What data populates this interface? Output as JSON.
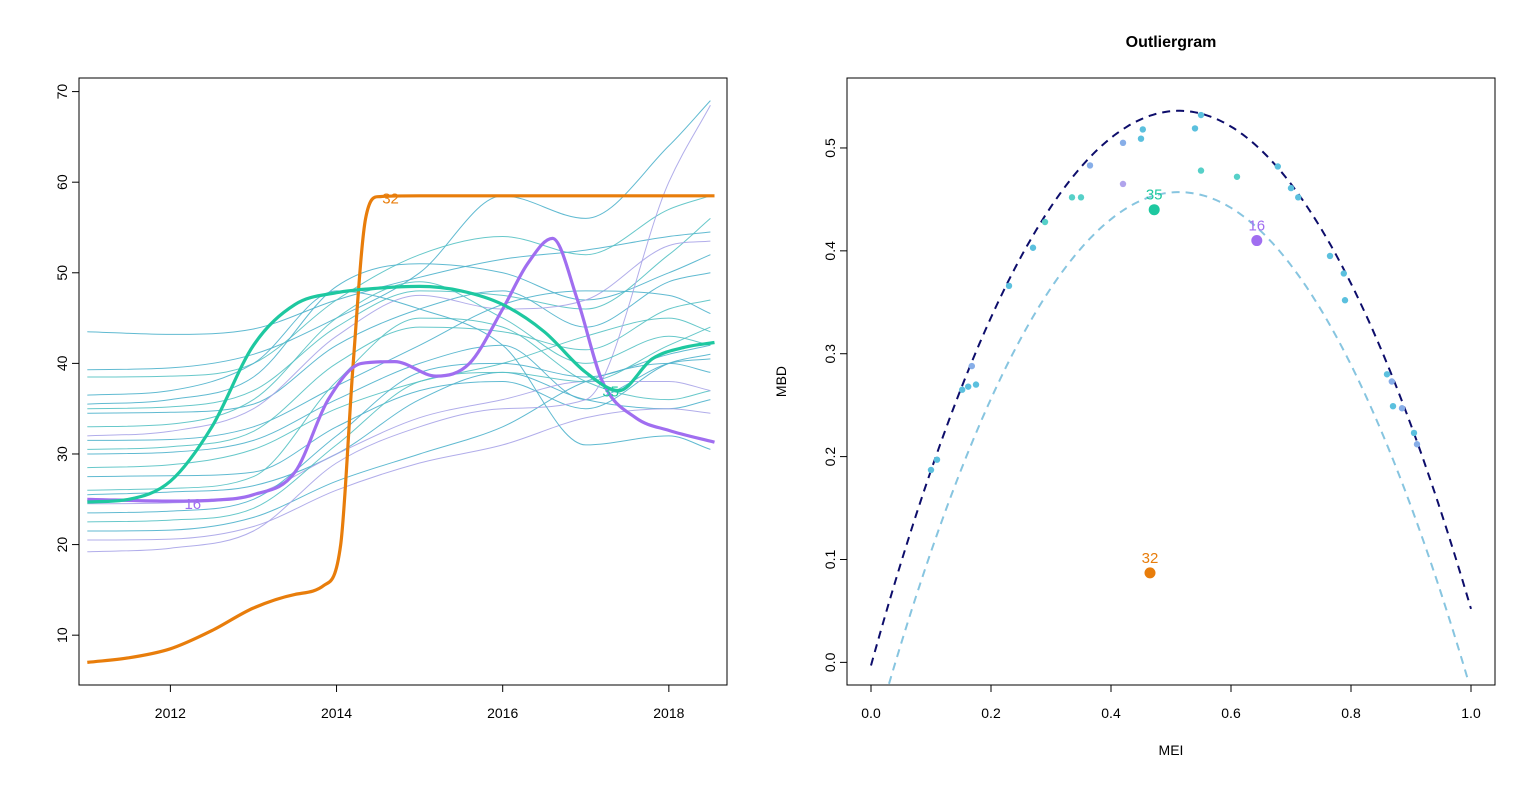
{
  "chart_data": [
    {
      "type": "line",
      "title": "",
      "xlabel": "",
      "ylabel": "",
      "xlim": [
        2010.9,
        2018.7
      ],
      "ylim": [
        4.5,
        71.5
      ],
      "x_ticks": [
        "2012",
        "2014",
        "2016",
        "2018"
      ],
      "y_ticks": [
        "10",
        "20",
        "30",
        "40",
        "50",
        "60",
        "70"
      ],
      "x_tick_values": [
        2012,
        2014,
        2016,
        2018
      ],
      "y_tick_values": [
        10,
        20,
        30,
        40,
        50,
        60,
        70
      ],
      "grid": false,
      "background_series": [
        {
          "x": [
            2011,
            2012,
            2013,
            2014,
            2015,
            2016,
            2017,
            2018,
            2018.5
          ],
          "values": [
            43.5,
            43.2,
            43.8,
            47.0,
            49.5,
            51.5,
            52.5,
            54.0,
            54.5
          ],
          "color": "#4fb3cc"
        },
        {
          "x": [
            2011,
            2012,
            2013,
            2014,
            2015,
            2016,
            2017,
            2018,
            2018.5
          ],
          "values": [
            39.3,
            39.5,
            41.0,
            45.0,
            50.0,
            58.5,
            56.0,
            64.0,
            69.0
          ],
          "color": "#4fb3cc"
        },
        {
          "x": [
            2011,
            2012,
            2013,
            2014,
            2015,
            2016,
            2017,
            2018,
            2018.5
          ],
          "values": [
            38.5,
            38.6,
            40.0,
            47.0,
            52.0,
            54.0,
            52.0,
            57.0,
            58.5
          ],
          "color": "#56c2c4"
        },
        {
          "x": [
            2011,
            2012,
            2013,
            2014,
            2015,
            2016,
            2017,
            2018,
            2018.5
          ],
          "values": [
            35.5,
            36.0,
            38.5,
            48.5,
            51.0,
            50.0,
            47.0,
            50.0,
            52.0
          ],
          "color": "#4fb3cc"
        },
        {
          "x": [
            2011,
            2012,
            2013,
            2014,
            2015,
            2016,
            2017,
            2018,
            2018.5
          ],
          "values": [
            35.0,
            35.2,
            37.0,
            44.0,
            48.0,
            47.5,
            46.0,
            52.0,
            56.0
          ],
          "color": "#56c2c4"
        },
        {
          "x": [
            2011,
            2012,
            2013,
            2014,
            2015,
            2016,
            2017,
            2018,
            2018.5
          ],
          "values": [
            34.5,
            34.6,
            35.5,
            42.0,
            46.0,
            48.0,
            44.0,
            49.0,
            50.0
          ],
          "color": "#4fb3cc"
        },
        {
          "x": [
            2011,
            2012,
            2013,
            2014,
            2015,
            2016,
            2017,
            2018,
            2018.5
          ],
          "values": [
            32.0,
            32.5,
            35.0,
            43.0,
            47.5,
            46.0,
            47.0,
            53.0,
            53.5
          ],
          "color": "#a9a4e8"
        },
        {
          "x": [
            2011,
            2012,
            2013,
            2014,
            2015,
            2016,
            2017,
            2018,
            2018.5
          ],
          "values": [
            31.5,
            31.6,
            33.0,
            37.5,
            42.0,
            46.5,
            48.0,
            47.5,
            45.5
          ],
          "color": "#4fb3cc"
        },
        {
          "x": [
            2011,
            2012,
            2013,
            2014,
            2015,
            2016,
            2017,
            2018,
            2018.5
          ],
          "values": [
            30.5,
            30.8,
            32.5,
            40.0,
            44.0,
            43.5,
            41.5,
            46.0,
            47.0
          ],
          "color": "#56c2c4"
        },
        {
          "x": [
            2011,
            2012,
            2013,
            2014,
            2015,
            2016,
            2017,
            2018,
            2018.5
          ],
          "values": [
            30.0,
            30.2,
            31.5,
            36.0,
            40.0,
            42.0,
            36.0,
            40.0,
            40.5
          ],
          "color": "#4fb3cc"
        },
        {
          "x": [
            2011,
            2012,
            2013,
            2014,
            2015,
            2016,
            2017,
            2018,
            2018.5
          ],
          "values": [
            28.5,
            28.8,
            30.5,
            35.0,
            38.0,
            40.0,
            43.0,
            45.0,
            43.5
          ],
          "color": "#56c2c4"
        },
        {
          "x": [
            2011,
            2012,
            2013,
            2014,
            2015,
            2016,
            2017,
            2018,
            2018.5
          ],
          "values": [
            27.5,
            27.6,
            28.0,
            33.0,
            37.0,
            38.0,
            35.0,
            40.0,
            41.0
          ],
          "color": "#4fb3cc"
        },
        {
          "x": [
            2011,
            2012,
            2013,
            2014,
            2015,
            2016,
            2017,
            2018,
            2018.5
          ],
          "values": [
            26.0,
            26.2,
            27.5,
            38.0,
            45.0,
            44.0,
            38.0,
            36.0,
            37.0
          ],
          "color": "#56c2c4"
        },
        {
          "x": [
            2011,
            2012,
            2013,
            2014,
            2015,
            2016,
            2017,
            2018,
            2018.5
          ],
          "values": [
            25.5,
            25.8,
            26.5,
            30.0,
            36.0,
            39.0,
            36.0,
            35.0,
            36.0
          ],
          "color": "#4fb3cc"
        },
        {
          "x": [
            2011,
            2012,
            2013,
            2014,
            2015,
            2016,
            2017,
            2018,
            2018.5
          ],
          "values": [
            24.5,
            24.6,
            25.5,
            30.0,
            34.0,
            36.0,
            38.0,
            38.0,
            37.0
          ],
          "color": "#a9a4e8"
        },
        {
          "x": [
            2011,
            2012,
            2013,
            2014,
            2015,
            2016,
            2017,
            2018,
            2018.5
          ],
          "values": [
            23.5,
            23.7,
            25.0,
            32.0,
            39.0,
            40.0,
            38.5,
            41.0,
            42.0
          ],
          "color": "#4fb3cc"
        },
        {
          "x": [
            2011,
            2012,
            2013,
            2014,
            2015,
            2016,
            2017,
            2018,
            2018.5
          ],
          "values": [
            22.5,
            22.7,
            24.0,
            31.0,
            38.0,
            39.0,
            38.0,
            42.0,
            44.0
          ],
          "color": "#56c2c4"
        },
        {
          "x": [
            2011,
            2012,
            2013,
            2014,
            2015,
            2016,
            2017,
            2018,
            2018.5
          ],
          "values": [
            21.5,
            21.6,
            23.0,
            27.0,
            30.0,
            33.0,
            38.0,
            40.0,
            39.0
          ],
          "color": "#4fb3cc"
        },
        {
          "x": [
            2011,
            2012,
            2013,
            2014,
            2015,
            2016,
            2017,
            2018,
            2018.5
          ],
          "values": [
            20.5,
            20.6,
            22.0,
            26.0,
            29.0,
            31.0,
            34.0,
            35.0,
            34.5
          ],
          "color": "#a9a4e8"
        },
        {
          "x": [
            2011,
            2012,
            2013,
            2014,
            2015,
            2016,
            2017,
            2018,
            2018.5
          ],
          "values": [
            19.2,
            19.6,
            21.5,
            29.0,
            33.0,
            35.0,
            36.0,
            60.0,
            68.5
          ],
          "color": "#a9a4e8"
        },
        {
          "x": [
            2011,
            2012,
            2013,
            2014,
            2015,
            2016,
            2017,
            2018,
            2018.5
          ],
          "values": [
            36.5,
            37.0,
            40.0,
            48.0,
            46.0,
            42.0,
            31.0,
            32.0,
            30.5
          ],
          "color": "#4fb3cc"
        },
        {
          "x": [
            2011,
            2012,
            2013,
            2014,
            2015,
            2016,
            2017,
            2018,
            2018.5
          ],
          "values": [
            33.0,
            33.3,
            36.0,
            45.0,
            49.0,
            45.0,
            40.0,
            43.0,
            42.0
          ],
          "color": "#56c2c4"
        }
      ],
      "highlighted_series": [
        {
          "name": "32",
          "color": "#e87d0b",
          "x": [
            2011.0,
            2011.5,
            2012.0,
            2012.5,
            2013.0,
            2013.5,
            2013.85,
            2014.05,
            2014.2,
            2014.35,
            2014.5,
            2015.0,
            2016.0,
            2017.0,
            2018.0,
            2018.55
          ],
          "values": [
            7.0,
            7.5,
            8.5,
            10.5,
            13.0,
            14.5,
            15.5,
            20.0,
            40.0,
            56.0,
            58.4,
            58.5,
            58.5,
            58.5,
            58.5,
            58.5
          ]
        },
        {
          "name": "16",
          "color": "#a06ef0",
          "x": [
            2011.0,
            2012.0,
            2012.5,
            2013.0,
            2013.5,
            2013.9,
            2014.3,
            2014.7,
            2015.2,
            2015.6,
            2016.0,
            2016.3,
            2016.6,
            2016.9,
            2017.2,
            2017.6,
            2018.0,
            2018.55
          ],
          "values": [
            25.0,
            24.8,
            24.9,
            25.5,
            28.0,
            36.0,
            40.0,
            40.2,
            38.6,
            40.0,
            46.0,
            51.0,
            53.8,
            47.0,
            38.0,
            34.0,
            32.6,
            31.3
          ]
        },
        {
          "name": "35",
          "color": "#1ec8a0",
          "x": [
            2011.0,
            2011.5,
            2012.0,
            2012.5,
            2013.0,
            2013.5,
            2014.0,
            2014.5,
            2015.0,
            2015.5,
            2016.0,
            2016.5,
            2017.0,
            2017.4,
            2017.8,
            2018.2,
            2018.55
          ],
          "values": [
            24.7,
            25.0,
            27.0,
            33.0,
            42.0,
            46.5,
            47.8,
            48.3,
            48.5,
            48.0,
            46.5,
            43.5,
            39.0,
            37.0,
            40.5,
            41.8,
            42.3
          ]
        }
      ],
      "annotations": [
        {
          "text": "32",
          "x": 2014.65,
          "y": 58.3,
          "color": "#e87d0b"
        },
        {
          "text": "16",
          "x": 2012.27,
          "y": 24.6,
          "color": "#a06ef0"
        },
        {
          "text": "35",
          "x": 2017.3,
          "y": 37.0,
          "color": "#1ec8a0"
        }
      ]
    },
    {
      "type": "scatter",
      "title": "Outliergram",
      "xlabel": "MEI",
      "ylabel": "MBD",
      "xlim": [
        -0.04,
        1.04
      ],
      "ylim": [
        -0.022,
        0.568
      ],
      "x_ticks": [
        "0.0",
        "0.2",
        "0.4",
        "0.6",
        "0.8",
        "1.0"
      ],
      "y_ticks": [
        "0.0",
        "0.1",
        "0.2",
        "0.3",
        "0.4",
        "0.5"
      ],
      "x_tick_values": [
        0,
        0.2,
        0.4,
        0.6,
        0.8,
        1.0
      ],
      "y_tick_values": [
        0,
        0.1,
        0.2,
        0.3,
        0.4,
        0.5
      ],
      "grid": false,
      "parabola_outer": {
        "a0": -0.003,
        "a1": 2.1,
        "a2": -2.045,
        "color": "#0d0d6b"
      },
      "parabola_inner": {
        "a0": -0.082,
        "a1": 2.1,
        "a2": -2.045,
        "color": "#87c5e0"
      },
      "points": [
        {
          "x": 0.1,
          "y": 0.187,
          "color": "#5bc0de"
        },
        {
          "x": 0.11,
          "y": 0.197,
          "color": "#5bc0de"
        },
        {
          "x": 0.152,
          "y": 0.265,
          "color": "#5bc0de"
        },
        {
          "x": 0.162,
          "y": 0.268,
          "color": "#5bc0de"
        },
        {
          "x": 0.168,
          "y": 0.288,
          "color": "#87aee8"
        },
        {
          "x": 0.175,
          "y": 0.27,
          "color": "#5bc0de"
        },
        {
          "x": 0.23,
          "y": 0.366,
          "color": "#5bc0de"
        },
        {
          "x": 0.27,
          "y": 0.403,
          "color": "#5bc0de"
        },
        {
          "x": 0.29,
          "y": 0.428,
          "color": "#56d0c8"
        },
        {
          "x": 0.335,
          "y": 0.452,
          "color": "#56d0c8"
        },
        {
          "x": 0.35,
          "y": 0.452,
          "color": "#56d0c8"
        },
        {
          "x": 0.365,
          "y": 0.483,
          "color": "#87aee8"
        },
        {
          "x": 0.42,
          "y": 0.465,
          "color": "#b0a4ec"
        },
        {
          "x": 0.42,
          "y": 0.505,
          "color": "#87aee8"
        },
        {
          "x": 0.45,
          "y": 0.509,
          "color": "#5bc0de"
        },
        {
          "x": 0.453,
          "y": 0.518,
          "color": "#5bc0de"
        },
        {
          "x": 0.54,
          "y": 0.519,
          "color": "#5bc0de"
        },
        {
          "x": 0.55,
          "y": 0.478,
          "color": "#56d0c8"
        },
        {
          "x": 0.55,
          "y": 0.532,
          "color": "#5bc0de"
        },
        {
          "x": 0.61,
          "y": 0.472,
          "color": "#56d0c8"
        },
        {
          "x": 0.678,
          "y": 0.482,
          "color": "#5bc0de"
        },
        {
          "x": 0.7,
          "y": 0.461,
          "color": "#5bc0de"
        },
        {
          "x": 0.712,
          "y": 0.452,
          "color": "#5bc0de"
        },
        {
          "x": 0.765,
          "y": 0.395,
          "color": "#5bc0de"
        },
        {
          "x": 0.788,
          "y": 0.378,
          "color": "#5bc0de"
        },
        {
          "x": 0.79,
          "y": 0.352,
          "color": "#5bc0de"
        },
        {
          "x": 0.86,
          "y": 0.28,
          "color": "#5bc0de"
        },
        {
          "x": 0.868,
          "y": 0.273,
          "color": "#87aee8"
        },
        {
          "x": 0.87,
          "y": 0.249,
          "color": "#5bc0de"
        },
        {
          "x": 0.885,
          "y": 0.247,
          "color": "#87aee8"
        },
        {
          "x": 0.905,
          "y": 0.223,
          "color": "#5bc0de"
        },
        {
          "x": 0.91,
          "y": 0.212,
          "color": "#87aee8"
        }
      ],
      "outliers": [
        {
          "name": "35",
          "x": 0.472,
          "y": 0.44,
          "color": "#1ec8a0"
        },
        {
          "name": "16",
          "x": 0.643,
          "y": 0.41,
          "color": "#a06ef0"
        },
        {
          "name": "32",
          "x": 0.465,
          "y": 0.087,
          "color": "#e87d0b"
        }
      ]
    }
  ]
}
